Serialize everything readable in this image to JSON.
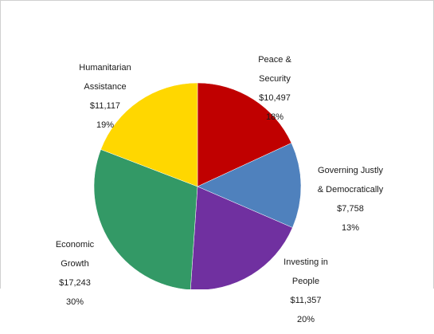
{
  "chart_data": {
    "type": "pie",
    "title": "",
    "start_angle_deg": 0,
    "direction": "clockwise",
    "slices": [
      {
        "name_lines": [
          "Peace &",
          "Security"
        ],
        "amount": "$10,497",
        "value": 10497,
        "percent": "18%",
        "color": "#c00000"
      },
      {
        "name_lines": [
          "Governing Justly",
          "& Democratically"
        ],
        "amount": "$7,758",
        "value": 7758,
        "percent": "13%",
        "color": "#4f81bd"
      },
      {
        "name_lines": [
          "Investing in",
          "People"
        ],
        "amount": "$11,357",
        "value": 11357,
        "percent": "20%",
        "color": "#7030a0"
      },
      {
        "name_lines": [
          "Economic",
          "Growth"
        ],
        "amount": "$17,243",
        "value": 17243,
        "percent": "30%",
        "color": "#339966"
      },
      {
        "name_lines": [
          "Humanitarian",
          "Assistance"
        ],
        "amount": "$11,117",
        "value": 11117,
        "percent": "19%",
        "color": "#ffd700"
      }
    ]
  }
}
